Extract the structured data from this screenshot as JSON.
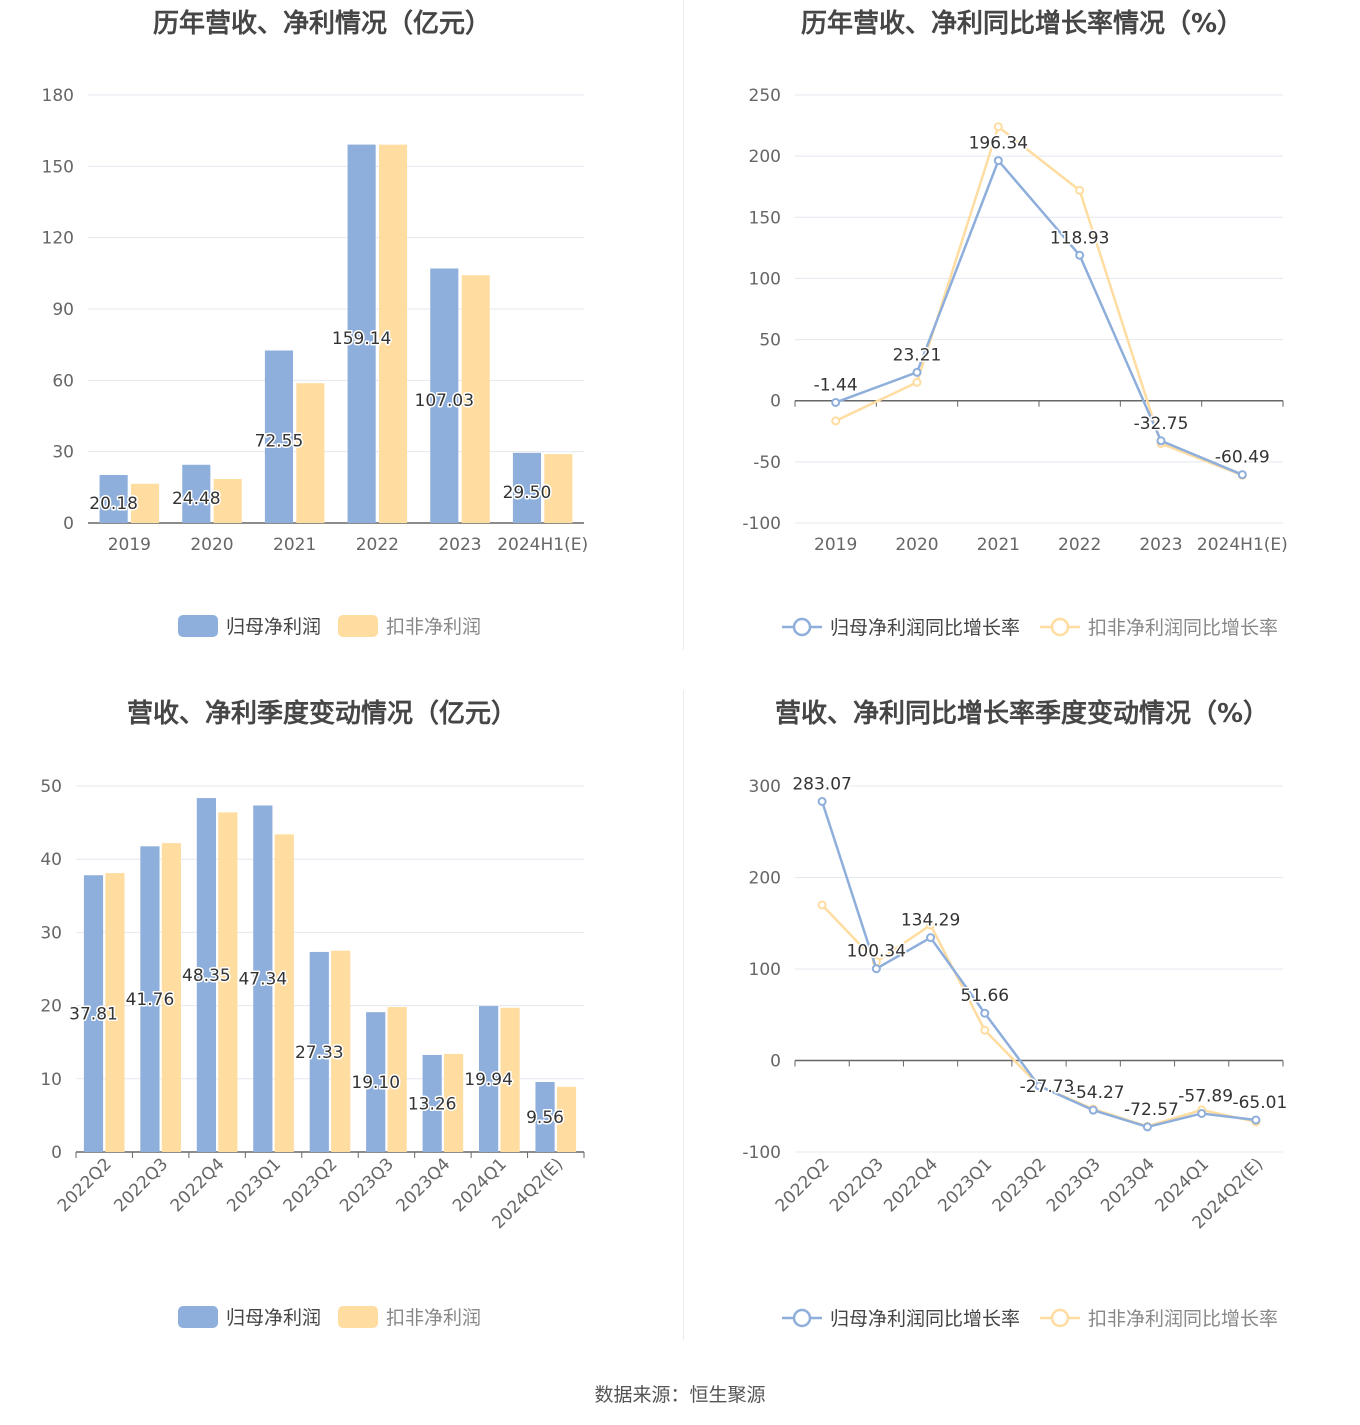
{
  "colors": {
    "blue": "#8eaedb",
    "yellow": "#ffdca0",
    "line_blue": "#8eaedb",
    "line_yellow": "#ffdca0",
    "grid": "#e4e8f0",
    "axis": "#666666"
  },
  "source_text": "数据来源：恒生聚源",
  "chart_data": [
    {
      "type": "bar",
      "title": "历年营收、净利情况（亿元）",
      "categories": [
        "2019",
        "2020",
        "2021",
        "2022",
        "2023",
        "2024H1(E)"
      ],
      "ylim": [
        0,
        180
      ],
      "yticks": [
        0,
        30,
        60,
        90,
        120,
        150,
        180
      ],
      "grid": true,
      "legend_position": "bottom",
      "series": [
        {
          "name": "归母净利润",
          "values": [
            20.18,
            24.48,
            72.55,
            159.14,
            107.03,
            29.5
          ],
          "labels": [
            "20.18",
            "24.48",
            "72.55",
            "159.14",
            "107.03",
            "29.50"
          ]
        },
        {
          "name": "扣非净利润",
          "values": [
            16.5,
            18.5,
            58.8,
            159.1,
            104.2,
            29.0
          ]
        }
      ]
    },
    {
      "type": "line",
      "title": "历年营收、净利同比增长率情况（%）",
      "categories": [
        "2019",
        "2020",
        "2021",
        "2022",
        "2023",
        "2024H1(E)"
      ],
      "ylim": [
        -100,
        250
      ],
      "yticks": [
        -100,
        -50,
        0,
        50,
        100,
        150,
        200,
        250
      ],
      "grid": true,
      "legend_position": "bottom",
      "series": [
        {
          "name": "归母净利润同比增长率",
          "values": [
            -1.44,
            23.21,
            196.34,
            118.93,
            -32.75,
            -60.49
          ],
          "labels": [
            "-1.44",
            "23.21",
            "196.34",
            "118.93",
            "-32.75",
            "-60.49"
          ]
        },
        {
          "name": "扣非净利润同比增长率",
          "values": [
            -16.5,
            15.0,
            224.0,
            172.0,
            -35.0,
            -61.0
          ]
        }
      ]
    },
    {
      "type": "bar",
      "title": "营收、净利季度变动情况（亿元）",
      "categories": [
        "2022Q2",
        "2022Q3",
        "2022Q4",
        "2023Q1",
        "2023Q2",
        "2023Q3",
        "2023Q4",
        "2024Q1",
        "2024Q2(E)"
      ],
      "ylim": [
        0,
        50
      ],
      "yticks": [
        0,
        10,
        20,
        30,
        40,
        50
      ],
      "grid": true,
      "legend_position": "bottom",
      "series": [
        {
          "name": "归母净利润",
          "values": [
            37.81,
            41.76,
            48.35,
            47.34,
            27.33,
            19.1,
            13.26,
            19.94,
            9.56
          ],
          "labels": [
            "37.81",
            "41.76",
            "48.35",
            "47.34",
            "27.33",
            "19.10",
            "13.26",
            "19.94",
            "9.56"
          ]
        },
        {
          "name": "扣非净利润",
          "values": [
            38.1,
            42.2,
            46.4,
            43.4,
            27.5,
            19.8,
            13.4,
            19.7,
            8.9
          ]
        }
      ]
    },
    {
      "type": "line",
      "title": "营收、净利同比增长率季度变动情况（%）",
      "categories": [
        "2022Q2",
        "2022Q3",
        "2022Q4",
        "2023Q1",
        "2023Q2",
        "2023Q3",
        "2023Q4",
        "2024Q1",
        "2024Q2(E)"
      ],
      "ylim": [
        -100,
        300
      ],
      "yticks": [
        -100,
        0,
        100,
        200,
        300
      ],
      "grid": true,
      "legend_position": "bottom",
      "series": [
        {
          "name": "归母净利润同比增长率",
          "values": [
            283.07,
            100.34,
            134.29,
            51.66,
            -27.73,
            -54.27,
            -72.57,
            -57.89,
            -65.01
          ],
          "labels": [
            "283.07",
            "100.34",
            "134.29",
            "51.66",
            "-27.73",
            "-54.27",
            "-72.57",
            "-57.89",
            "-65.01"
          ]
        },
        {
          "name": "扣非净利润同比增长率",
          "values": [
            170.0,
            108.0,
            148.0,
            33.0,
            -27.5,
            -53.0,
            -72.0,
            -54.0,
            -67.0
          ]
        }
      ]
    }
  ]
}
